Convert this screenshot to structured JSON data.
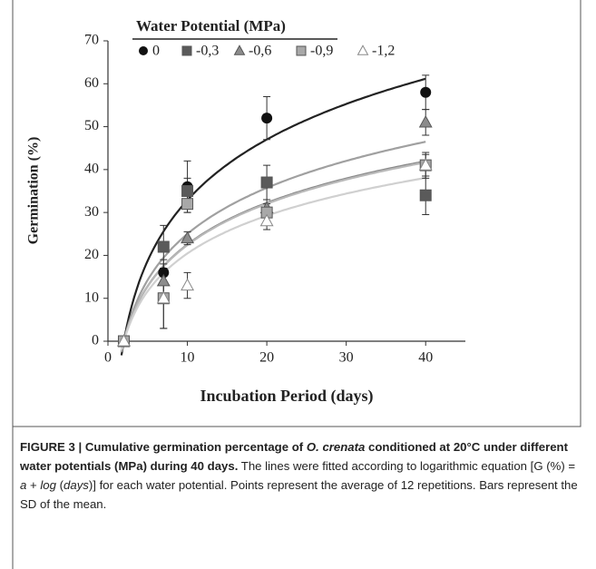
{
  "chart_data": {
    "type": "scatter",
    "xlabel": "Incubation Period (days)",
    "ylabel": "Germination (%)",
    "legend_title": "Water Potential (MPa)",
    "x": [
      2,
      7,
      10,
      20,
      40
    ],
    "xlim": [
      0,
      45
    ],
    "xticks": [
      0,
      10,
      20,
      30,
      40
    ],
    "ylim": [
      0,
      70
    ],
    "yticks": [
      0,
      10,
      20,
      30,
      40,
      50,
      60,
      70
    ],
    "series": [
      {
        "name": "0",
        "marker": "circle",
        "color": "#111111",
        "line_color": "#222222",
        "values": [
          0,
          16,
          36,
          52,
          58
        ],
        "errors": [
          0,
          3,
          6,
          5,
          4
        ],
        "fit": [
          -14.1,
          20.4
        ]
      },
      {
        "name": "-0,3",
        "marker": "square",
        "color": "#5a5a5a",
        "line_color": "#8a8a8a",
        "values": [
          0,
          22,
          35,
          37,
          34
        ],
        "errors": [
          0,
          5,
          3,
          4,
          4.5
        ],
        "fit": [
          -9.7,
          14.0
        ]
      },
      {
        "name": "-0,6",
        "marker": "triangle",
        "color": "#8c8c8c",
        "line_color": "#a0a0a0",
        "values": [
          0,
          14,
          24,
          31,
          51
        ],
        "errors": [
          0,
          4,
          1.5,
          2,
          3
        ],
        "fit": [
          -10.7,
          15.5
        ]
      },
      {
        "name": "-0,9",
        "marker": "square",
        "color": "#a8a8a8",
        "line_color": "#b8b8b8",
        "values": [
          0,
          10,
          32,
          30,
          41
        ],
        "errors": [
          0,
          7,
          2,
          2,
          2.5
        ],
        "fit": [
          -9.6,
          13.9
        ]
      },
      {
        "name": "-1,2",
        "marker": "triangle-open",
        "color": "#ffffff",
        "line_color": "#d0d0d0",
        "values": [
          0,
          10,
          13,
          28,
          41
        ],
        "errors": [
          0,
          7,
          3,
          2,
          3
        ],
        "fit": [
          -8.8,
          12.7
        ]
      }
    ]
  },
  "caption": {
    "segments": [
      "FIGURE 3 | Cumulative germination percentage of ",
      "O. crenata",
      " conditioned at 20°C under different water potentials (MPa) during 40 days.",
      " The lines were fitted according to logarithmic equation [G (%) = ",
      "a",
      " + ",
      "log",
      " (",
      "days",
      ")] for each water potential. Points represent the average of 12 repetitions. Bars represent the SD of the mean."
    ]
  }
}
